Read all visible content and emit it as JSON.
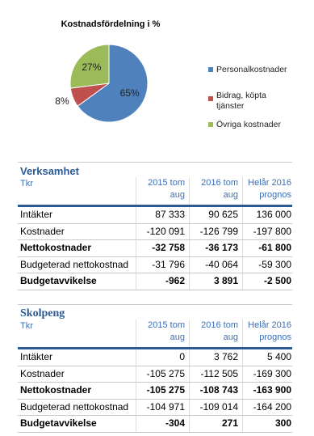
{
  "chart_data": {
    "type": "pie",
    "title": "Kostnadsfördelning i %",
    "categories": [
      "Personalkostnader",
      "Bidrag, köpta tjänster",
      "Övriga kostnader"
    ],
    "values": [
      65,
      8,
      27
    ],
    "value_labels": [
      "65%",
      "8%",
      "27%"
    ],
    "colors": [
      "#4f81bd",
      "#c0504d",
      "#9bbb59"
    ],
    "legend": "right"
  },
  "tables": [
    {
      "title": "Verksamhet",
      "subtitle": "Tkr",
      "headers": [
        [
          "2015 tom",
          "aug"
        ],
        [
          "2016 tom",
          "aug"
        ],
        [
          "Helår 2016",
          "prognos"
        ]
      ],
      "rows": [
        {
          "cells": [
            "Intäkter",
            "87 333",
            "90 625",
            "136 000"
          ],
          "bold": false
        },
        {
          "cells": [
            "Kostnader",
            "-120 091",
            "-126 799",
            "-197 800"
          ],
          "bold": false
        },
        {
          "cells": [
            "Nettokostnader",
            "-32 758",
            "-36 173",
            "-61 800"
          ],
          "bold": true
        },
        {
          "cells": [
            "Budgeterad nettokostnad",
            "-31 796",
            "-40 064",
            "-59 300"
          ],
          "bold": false
        },
        {
          "cells": [
            "Budgetavvikelse",
            "-962",
            "3 891",
            "-2 500"
          ],
          "bold": true
        }
      ]
    },
    {
      "title": "Skolpeng",
      "subtitle": "Tkr",
      "headers": [
        [
          "2015 tom",
          "aug"
        ],
        [
          "2016 tom",
          "aug"
        ],
        [
          "Helår 2016",
          "prognos"
        ]
      ],
      "rows": [
        {
          "cells": [
            "Intäkter",
            "0",
            "3 762",
            "5 400"
          ],
          "bold": false
        },
        {
          "cells": [
            "Kostnader",
            "-105 275",
            "-112 505",
            "-169 300"
          ],
          "bold": false
        },
        {
          "cells": [
            "Nettokostnader",
            "-105 275",
            "-108 743",
            "-163 900"
          ],
          "bold": true
        },
        {
          "cells": [
            "Budgeterad nettokostnad",
            "-104 971",
            "-109 014",
            "-164 200"
          ],
          "bold": false
        },
        {
          "cells": [
            "Budgetavvikelse",
            "-304",
            "271",
            "300"
          ],
          "bold": true
        }
      ]
    }
  ]
}
